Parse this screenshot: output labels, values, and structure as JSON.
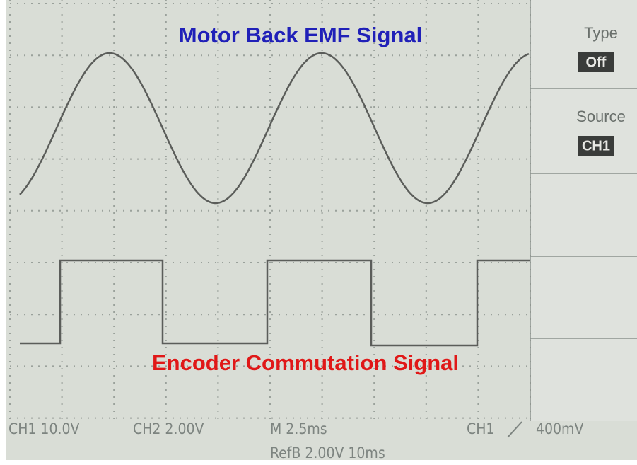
{
  "screen": {
    "top_label": "Motor Back EMF Signal",
    "bottom_label": "Encoder Commutation Signal"
  },
  "menu": {
    "items": [
      {
        "title": "Type",
        "value": "Off"
      },
      {
        "title": "Source",
        "value": "CH1"
      }
    ]
  },
  "status": {
    "ch1": "CH1 10.0V",
    "ch2": "CH2 2.00V",
    "timebase": "M 2.5ms",
    "trigger_source": "CH1",
    "trigger_level": "400mV",
    "ref": "RefB 2.00V 10ms"
  }
}
